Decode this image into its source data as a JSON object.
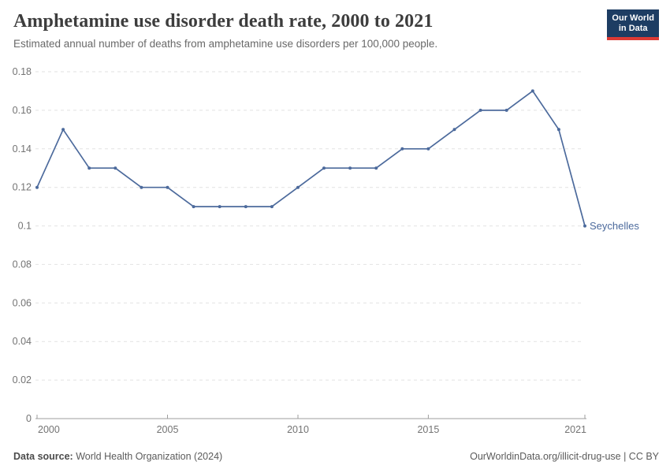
{
  "header": {
    "title": "Amphetamine use disorder death rate, 2000 to 2021",
    "subtitle": "Estimated annual number of deaths from amphetamine use disorders per 100,000 people."
  },
  "logo": {
    "line1": "Our World",
    "line2": "in Data"
  },
  "colors": {
    "accent": "#4c6a9c",
    "logo_bg": "#1d3d63",
    "logo_red": "#dc3a34",
    "grid": "#e2e2e2",
    "axis": "#9e9e9e",
    "tick_label": "#737373"
  },
  "chart_data": {
    "type": "line",
    "title": "Amphetamine use disorder death rate, 2000 to 2021",
    "xlabel": "",
    "ylabel": "",
    "x": [
      2000,
      2001,
      2002,
      2003,
      2004,
      2005,
      2006,
      2007,
      2008,
      2009,
      2010,
      2011,
      2012,
      2013,
      2014,
      2015,
      2016,
      2017,
      2018,
      2019,
      2020,
      2021
    ],
    "series": [
      {
        "name": "Seychelles",
        "color": "#4c6a9c",
        "values": [
          0.12,
          0.15,
          0.13,
          0.13,
          0.12,
          0.12,
          0.11,
          0.11,
          0.11,
          0.11,
          0.12,
          0.13,
          0.13,
          0.13,
          0.14,
          0.14,
          0.15,
          0.16,
          0.16,
          0.17,
          0.15,
          0.1
        ]
      }
    ],
    "ylim": [
      0,
      0.18
    ],
    "yticks": [
      0,
      0.02,
      0.04,
      0.06,
      0.08,
      0.1,
      0.12,
      0.14,
      0.16,
      0.18
    ],
    "xticks": [
      2000,
      2005,
      2010,
      2015,
      2021
    ],
    "grid": "dashed-horizontal",
    "legend_position": "end-of-line-label"
  },
  "footer": {
    "source_label": "Data source:",
    "source_text": "World Health Organization (2024)",
    "credit": "OurWorldinData.org/illicit-drug-use | CC BY"
  }
}
